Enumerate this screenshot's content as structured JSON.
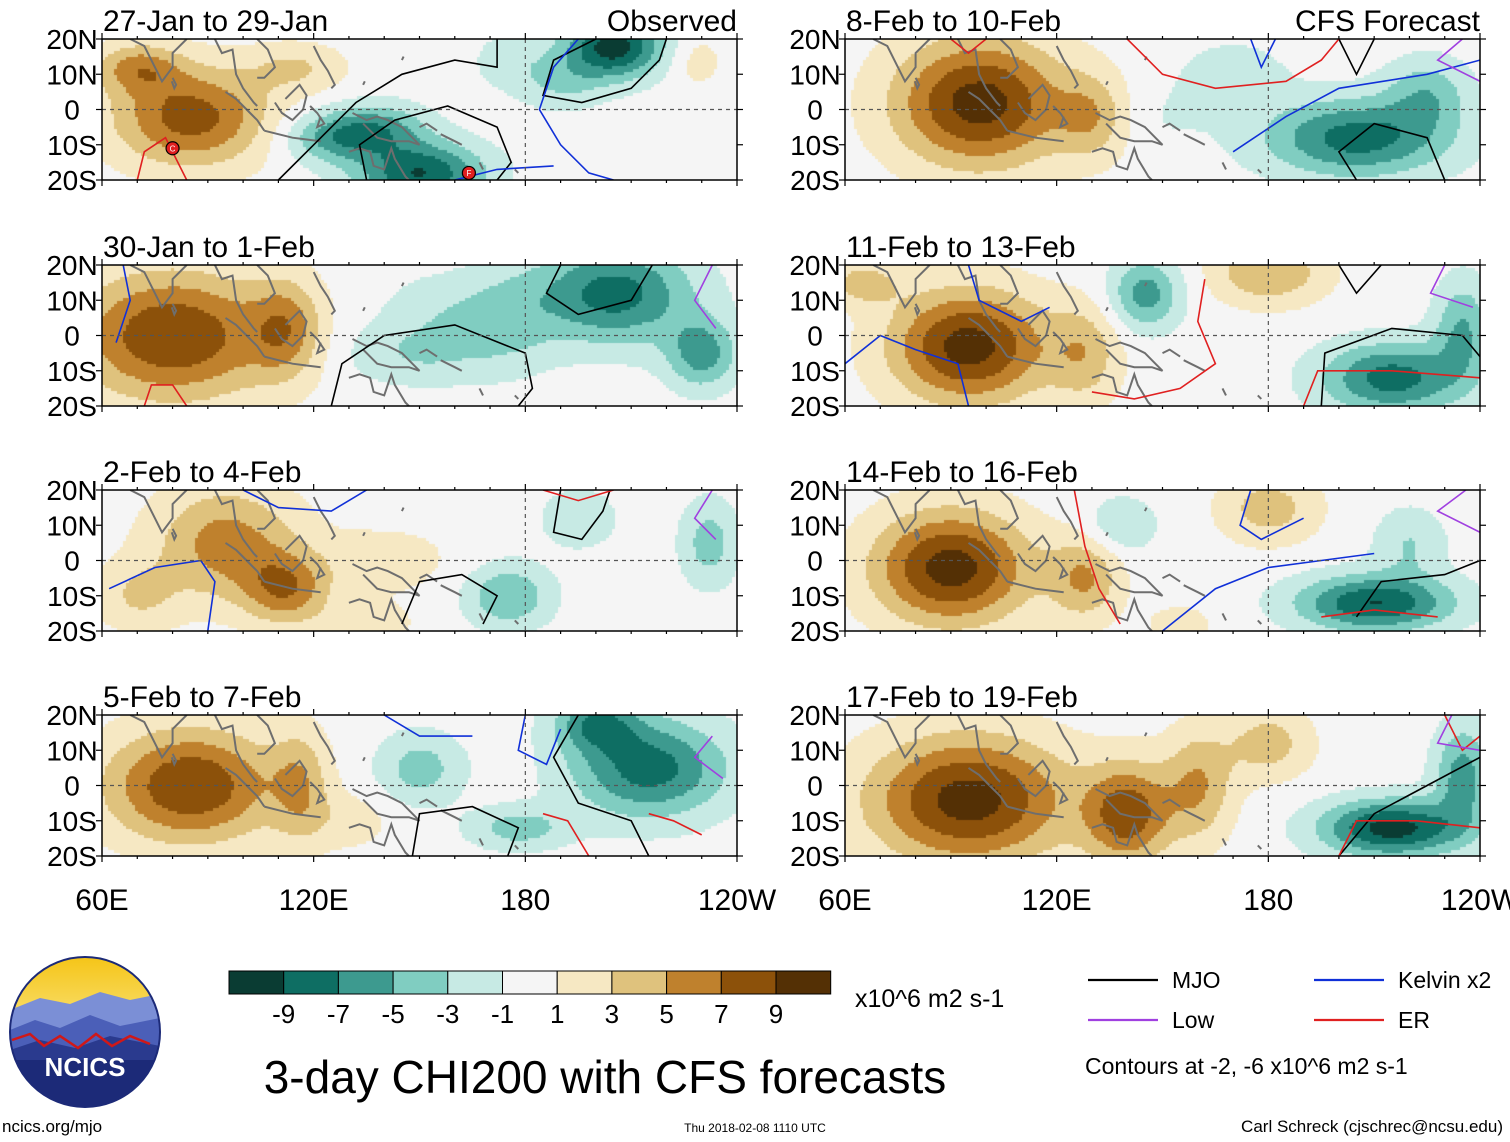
{
  "figure": {
    "title": "3-day CHI200 with CFS forecasts",
    "website": "ncics.org/mjo",
    "timestamp": "Thu 2018-02-08 1110 UTC",
    "credit": "Carl Schreck (cjschrec@ncsu.edu)",
    "logo_text": "NCICS"
  },
  "chart_data": {
    "type": "heatmap",
    "variable": "CHI200",
    "columns": [
      {
        "header": "Observed",
        "panels": [
          {
            "label": "27-Jan to 29-Jan",
            "tc_markers": [
              "C",
              "F"
            ]
          },
          {
            "label": "30-Jan to 1-Feb"
          },
          {
            "label": "2-Feb to 4-Feb"
          },
          {
            "label": "5-Feb to 7-Feb"
          }
        ]
      },
      {
        "header": "CFS Forecast",
        "panels": [
          {
            "label": "8-Feb to 10-Feb"
          },
          {
            "label": "11-Feb to 13-Feb"
          },
          {
            "label": "14-Feb to 16-Feb"
          },
          {
            "label": "17-Feb to 19-Feb"
          }
        ]
      }
    ],
    "y_ticks": [
      "20N",
      "10N",
      "0",
      "10S",
      "20S"
    ],
    "x_ticks": [
      "60E",
      "120E",
      "180",
      "120W"
    ],
    "lat_range": [
      -20,
      20
    ],
    "lon_range": [
      60,
      240
    ],
    "colorbar": {
      "levels": [
        "-9",
        "-7",
        "-5",
        "-3",
        "-1",
        "1",
        "3",
        "5",
        "7",
        "9"
      ],
      "colors": [
        "#0a3c33",
        "#0e6e63",
        "#3d9a8f",
        "#80cdc1",
        "#c7eae4",
        "#f5f5f5",
        "#f6e8c3",
        "#dfc27d",
        "#bf812d",
        "#8c510a",
        "#543005"
      ],
      "units": "x10^6 m2 s-1"
    },
    "legend": [
      {
        "label": "MJO",
        "color": "#000000"
      },
      {
        "label": "Kelvin x2",
        "color": "#1030d8"
      },
      {
        "label": "Low",
        "color": "#a040e0"
      },
      {
        "label": "ER",
        "color": "#e02020"
      }
    ],
    "contour_note": "Contours at -2, -6 x10^6 m2 s-1"
  }
}
